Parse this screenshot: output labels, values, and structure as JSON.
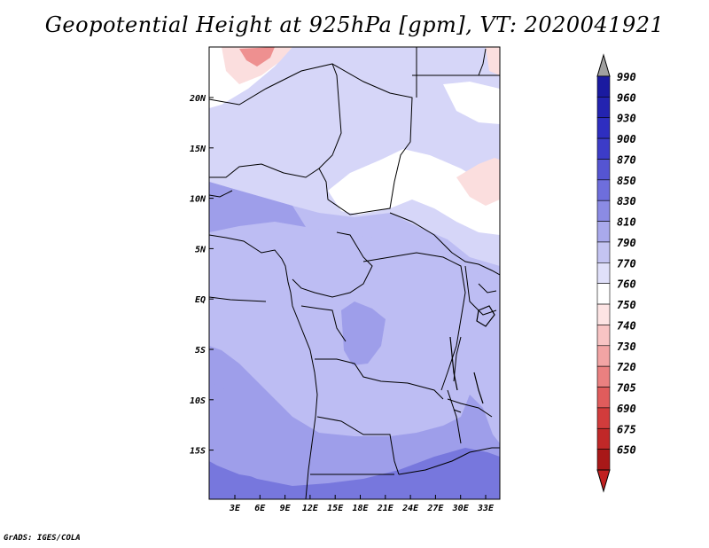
{
  "title": "Geopotential Height at 925hPa [gpm], VT: 2020041921",
  "credit": "GrADS: IGES/COLA",
  "axes": {
    "lon_ticks": [
      "3E",
      "6E",
      "9E",
      "12E",
      "15E",
      "18E",
      "21E",
      "24E",
      "27E",
      "30E",
      "33E"
    ],
    "lat_ticks": [
      "20N",
      "15N",
      "10N",
      "5N",
      "EQ",
      "5S",
      "10S",
      "15S"
    ]
  },
  "colorbar": {
    "levels": [
      {
        "label": "990",
        "color": "#1a1aa0"
      },
      {
        "label": "960",
        "color": "#2323b0"
      },
      {
        "label": "930",
        "color": "#2e2ec0"
      },
      {
        "label": "900",
        "color": "#3c3cc8"
      },
      {
        "label": "870",
        "color": "#5555d2"
      },
      {
        "label": "850",
        "color": "#6e6edc"
      },
      {
        "label": "830",
        "color": "#8b8be4"
      },
      {
        "label": "810",
        "color": "#a9a9ec"
      },
      {
        "label": "790",
        "color": "#c4c4f2"
      },
      {
        "label": "770",
        "color": "#e0e0fa"
      },
      {
        "label": "760",
        "color": "#ffffff"
      },
      {
        "label": "750",
        "color": "#fde4e4"
      },
      {
        "label": "740",
        "color": "#f8c4c4"
      },
      {
        "label": "730",
        "color": "#f2a4a4"
      },
      {
        "label": "720",
        "color": "#ea8080"
      },
      {
        "label": "705",
        "color": "#e05c5c"
      },
      {
        "label": "690",
        "color": "#d23c3c"
      },
      {
        "label": "675",
        "color": "#c02828"
      },
      {
        "label": "650",
        "color": "#a81818"
      }
    ],
    "top_arrow_color": "#a0a0a0",
    "bottom_arrow_color": "#c02020"
  },
  "map_colors": {
    "deep_blue": "#7777dd",
    "mid_blue": "#9e9eea",
    "light_blue": "#bdbdf3",
    "pale_blue": "#d6d6f8",
    "white": "#ffffff",
    "pale_red": "#fbdede",
    "light_red": "#f4b2b2",
    "red": "#ee9090"
  }
}
